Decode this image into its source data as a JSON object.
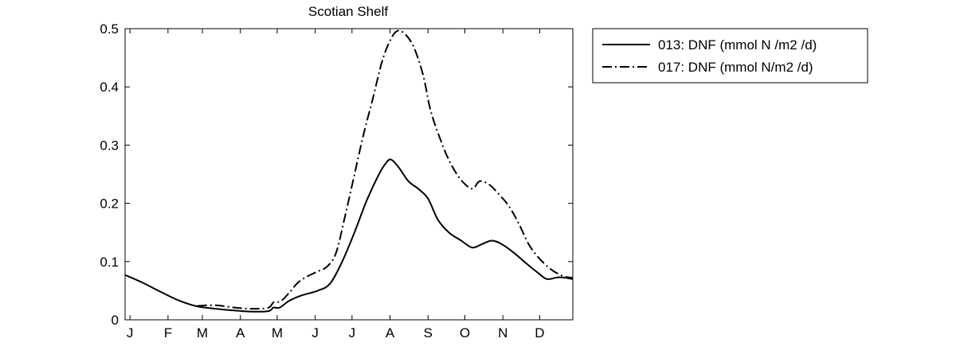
{
  "chart_data": {
    "type": "line",
    "title": "Scotian Shelf",
    "xlabel": "",
    "ylabel": "",
    "xlim": [
      1,
      366
    ],
    "ylim": [
      0,
      0.5
    ],
    "grid": false,
    "legend_position": "outside-top-right",
    "x_ticks": [
      {
        "label": "J",
        "value": 5
      },
      {
        "label": "F",
        "value": 36
      },
      {
        "label": "M",
        "value": 64
      },
      {
        "label": "A",
        "value": 95
      },
      {
        "label": "M",
        "value": 125
      },
      {
        "label": "J",
        "value": 156
      },
      {
        "label": "J",
        "value": 186
      },
      {
        "label": "A",
        "value": 217
      },
      {
        "label": "S",
        "value": 248
      },
      {
        "label": "O",
        "value": 278
      },
      {
        "label": "N",
        "value": 309
      },
      {
        "label": "D",
        "value": 339
      }
    ],
    "y_ticks": [
      {
        "label": "0",
        "value": 0
      },
      {
        "label": "0.1",
        "value": 0.1
      },
      {
        "label": "0.2",
        "value": 0.2
      },
      {
        "label": "0.3",
        "value": 0.3
      },
      {
        "label": "0.4",
        "value": 0.4
      },
      {
        "label": "0.5",
        "value": 0.5
      }
    ],
    "series": [
      {
        "name": "013: DNF (mmol N /m2 /d)",
        "style": "solid",
        "color": "#000000",
        "points": [
          [
            1,
            0.077
          ],
          [
            15,
            0.064
          ],
          [
            30,
            0.048
          ],
          [
            45,
            0.033
          ],
          [
            60,
            0.023
          ],
          [
            75,
            0.019
          ],
          [
            90,
            0.016
          ],
          [
            105,
            0.014
          ],
          [
            118,
            0.015
          ],
          [
            122,
            0.021
          ],
          [
            127,
            0.021
          ],
          [
            135,
            0.033
          ],
          [
            145,
            0.042
          ],
          [
            158,
            0.05
          ],
          [
            168,
            0.062
          ],
          [
            178,
            0.1
          ],
          [
            188,
            0.15
          ],
          [
            198,
            0.205
          ],
          [
            208,
            0.25
          ],
          [
            214,
            0.27
          ],
          [
            218,
            0.275
          ],
          [
            224,
            0.262
          ],
          [
            232,
            0.238
          ],
          [
            240,
            0.225
          ],
          [
            248,
            0.208
          ],
          [
            256,
            0.172
          ],
          [
            265,
            0.15
          ],
          [
            275,
            0.136
          ],
          [
            284,
            0.124
          ],
          [
            292,
            0.13
          ],
          [
            300,
            0.136
          ],
          [
            308,
            0.13
          ],
          [
            318,
            0.115
          ],
          [
            328,
            0.097
          ],
          [
            338,
            0.08
          ],
          [
            345,
            0.07
          ],
          [
            355,
            0.073
          ],
          [
            366,
            0.07
          ]
        ]
      },
      {
        "name": "017: DNF (mmol N/m2 /d)",
        "style": "dashdot",
        "color": "#000000",
        "points": [
          [
            60,
            0.024
          ],
          [
            75,
            0.025
          ],
          [
            90,
            0.021
          ],
          [
            105,
            0.019
          ],
          [
            118,
            0.021
          ],
          [
            122,
            0.03
          ],
          [
            128,
            0.032
          ],
          [
            135,
            0.047
          ],
          [
            142,
            0.064
          ],
          [
            150,
            0.075
          ],
          [
            158,
            0.083
          ],
          [
            166,
            0.092
          ],
          [
            173,
            0.115
          ],
          [
            180,
            0.175
          ],
          [
            187,
            0.24
          ],
          [
            195,
            0.315
          ],
          [
            203,
            0.38
          ],
          [
            210,
            0.44
          ],
          [
            216,
            0.475
          ],
          [
            222,
            0.495
          ],
          [
            228,
            0.493
          ],
          [
            236,
            0.47
          ],
          [
            244,
            0.42
          ],
          [
            250,
            0.36
          ],
          [
            258,
            0.31
          ],
          [
            266,
            0.27
          ],
          [
            275,
            0.24
          ],
          [
            284,
            0.225
          ],
          [
            290,
            0.238
          ],
          [
            298,
            0.232
          ],
          [
            306,
            0.215
          ],
          [
            314,
            0.195
          ],
          [
            322,
            0.165
          ],
          [
            330,
            0.13
          ],
          [
            338,
            0.107
          ],
          [
            348,
            0.087
          ],
          [
            358,
            0.075
          ],
          [
            366,
            0.072
          ]
        ]
      }
    ]
  }
}
